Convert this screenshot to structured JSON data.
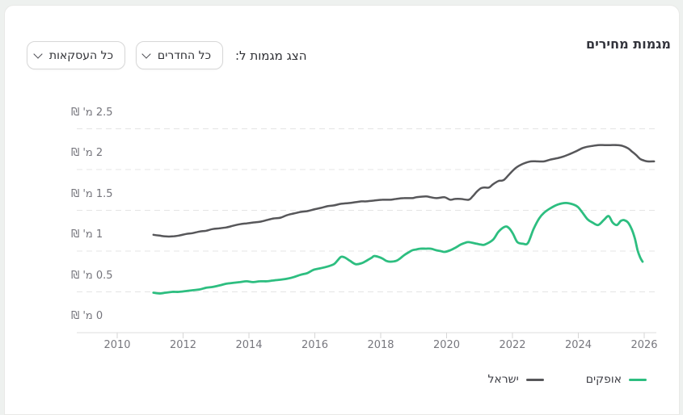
{
  "page": {
    "background": "#eef1ef",
    "card_background": "#ffffff"
  },
  "header": {
    "title": "מגמות מחירים",
    "filters_label": "הצג מגמות ל:",
    "rooms_filter": {
      "value": "כל החדרים"
    },
    "transactions_filter": {
      "value": "כל העסקאות"
    }
  },
  "chart_data": {
    "type": "line",
    "title": "מגמות מחירים",
    "x_axis": {
      "min": 2009.3,
      "max": 2026.55,
      "grid": false,
      "ticks": [
        2010,
        2012,
        2014,
        2016,
        2018,
        2020,
        2022,
        2024,
        2026
      ]
    },
    "y_axis": {
      "min": 0,
      "max": 2.5,
      "unit": "מיליוני ₪",
      "grid": true,
      "grid_style": "dashed",
      "ticks": [
        {
          "value": 0,
          "label": "0 מ' ₪"
        },
        {
          "value": 0.5,
          "label": "0.5 מ' ₪"
        },
        {
          "value": 1,
          "label": "1 מ' ₪"
        },
        {
          "value": 1.5,
          "label": "1.5 מ' ₪"
        },
        {
          "value": 2,
          "label": "2 מ' ₪"
        },
        {
          "value": 2.5,
          "label": "2.5 מ' ₪"
        }
      ]
    },
    "legend_position": "bottom-right",
    "series": [
      {
        "name": "אופקים",
        "color": "#2dbe80",
        "points": [
          [
            2011.1,
            0.49
          ],
          [
            2011.28,
            0.48
          ],
          [
            2011.47,
            0.49
          ],
          [
            2011.67,
            0.5
          ],
          [
            2011.87,
            0.5
          ],
          [
            2012.09,
            0.51
          ],
          [
            2012.28,
            0.52
          ],
          [
            2012.5,
            0.53
          ],
          [
            2012.7,
            0.55
          ],
          [
            2012.9,
            0.56
          ],
          [
            2013.12,
            0.58
          ],
          [
            2013.31,
            0.6
          ],
          [
            2013.51,
            0.61
          ],
          [
            2013.73,
            0.62
          ],
          [
            2013.93,
            0.63
          ],
          [
            2014.12,
            0.62
          ],
          [
            2014.34,
            0.63
          ],
          [
            2014.54,
            0.63
          ],
          [
            2014.74,
            0.64
          ],
          [
            2014.96,
            0.65
          ],
          [
            2015.15,
            0.66
          ],
          [
            2015.35,
            0.68
          ],
          [
            2015.57,
            0.71
          ],
          [
            2015.77,
            0.73
          ],
          [
            2015.96,
            0.77
          ],
          [
            2016.18,
            0.79
          ],
          [
            2016.38,
            0.81
          ],
          [
            2016.58,
            0.84
          ],
          [
            2016.7,
            0.89
          ],
          [
            2016.8,
            0.93
          ],
          [
            2016.92,
            0.92
          ],
          [
            2017.07,
            0.88
          ],
          [
            2017.24,
            0.84
          ],
          [
            2017.41,
            0.85
          ],
          [
            2017.56,
            0.88
          ],
          [
            2017.73,
            0.92
          ],
          [
            2017.8,
            0.94
          ],
          [
            2017.93,
            0.93
          ],
          [
            2018.05,
            0.91
          ],
          [
            2018.17,
            0.88
          ],
          [
            2018.29,
            0.87
          ],
          [
            2018.47,
            0.88
          ],
          [
            2018.59,
            0.91
          ],
          [
            2018.71,
            0.95
          ],
          [
            2018.83,
            0.98
          ],
          [
            2018.96,
            1.01
          ],
          [
            2019.08,
            1.02
          ],
          [
            2019.2,
            1.03
          ],
          [
            2019.37,
            1.03
          ],
          [
            2019.52,
            1.03
          ],
          [
            2019.69,
            1.01
          ],
          [
            2019.82,
            1.0
          ],
          [
            2019.94,
            0.99
          ],
          [
            2020.11,
            1.01
          ],
          [
            2020.26,
            1.04
          ],
          [
            2020.43,
            1.08
          ],
          [
            2020.55,
            1.1
          ],
          [
            2020.67,
            1.11
          ],
          [
            2020.92,
            1.09
          ],
          [
            2021.04,
            1.08
          ],
          [
            2021.16,
            1.08
          ],
          [
            2021.41,
            1.14
          ],
          [
            2021.58,
            1.24
          ],
          [
            2021.78,
            1.3
          ],
          [
            2021.9,
            1.28
          ],
          [
            2022.02,
            1.21
          ],
          [
            2022.15,
            1.11
          ],
          [
            2022.32,
            1.09
          ],
          [
            2022.47,
            1.1
          ],
          [
            2022.64,
            1.27
          ],
          [
            2022.81,
            1.4
          ],
          [
            2022.96,
            1.47
          ],
          [
            2023.13,
            1.52
          ],
          [
            2023.37,
            1.57
          ],
          [
            2023.62,
            1.59
          ],
          [
            2023.86,
            1.57
          ],
          [
            2023.99,
            1.54
          ],
          [
            2024.11,
            1.48
          ],
          [
            2024.28,
            1.39
          ],
          [
            2024.43,
            1.35
          ],
          [
            2024.6,
            1.32
          ],
          [
            2024.77,
            1.38
          ],
          [
            2024.92,
            1.43
          ],
          [
            2025.04,
            1.35
          ],
          [
            2025.17,
            1.32
          ],
          [
            2025.29,
            1.37
          ],
          [
            2025.39,
            1.38
          ],
          [
            2025.51,
            1.35
          ],
          [
            2025.63,
            1.26
          ],
          [
            2025.72,
            1.15
          ],
          [
            2025.8,
            1.01
          ],
          [
            2025.88,
            0.92
          ],
          [
            2025.95,
            0.87
          ]
        ]
      },
      {
        "name": "ישראל",
        "color": "#57575a",
        "points": [
          [
            2011.1,
            1.2
          ],
          [
            2011.28,
            1.19
          ],
          [
            2011.47,
            1.18
          ],
          [
            2011.67,
            1.18
          ],
          [
            2011.87,
            1.19
          ],
          [
            2012.09,
            1.21
          ],
          [
            2012.28,
            1.22
          ],
          [
            2012.5,
            1.24
          ],
          [
            2012.7,
            1.25
          ],
          [
            2012.9,
            1.27
          ],
          [
            2013.12,
            1.28
          ],
          [
            2013.31,
            1.29
          ],
          [
            2013.51,
            1.31
          ],
          [
            2013.73,
            1.33
          ],
          [
            2013.93,
            1.34
          ],
          [
            2014.12,
            1.35
          ],
          [
            2014.34,
            1.36
          ],
          [
            2014.54,
            1.38
          ],
          [
            2014.74,
            1.4
          ],
          [
            2014.96,
            1.41
          ],
          [
            2015.15,
            1.44
          ],
          [
            2015.35,
            1.46
          ],
          [
            2015.57,
            1.48
          ],
          [
            2015.77,
            1.49
          ],
          [
            2015.96,
            1.51
          ],
          [
            2016.18,
            1.53
          ],
          [
            2016.38,
            1.55
          ],
          [
            2016.58,
            1.56
          ],
          [
            2016.8,
            1.58
          ],
          [
            2017.07,
            1.59
          ],
          [
            2017.24,
            1.6
          ],
          [
            2017.41,
            1.61
          ],
          [
            2017.56,
            1.61
          ],
          [
            2017.8,
            1.62
          ],
          [
            2018.05,
            1.63
          ],
          [
            2018.29,
            1.63
          ],
          [
            2018.47,
            1.64
          ],
          [
            2018.71,
            1.65
          ],
          [
            2018.96,
            1.65
          ],
          [
            2019.08,
            1.66
          ],
          [
            2019.37,
            1.67
          ],
          [
            2019.52,
            1.66
          ],
          [
            2019.69,
            1.65
          ],
          [
            2019.94,
            1.66
          ],
          [
            2020.11,
            1.63
          ],
          [
            2020.26,
            1.64
          ],
          [
            2020.43,
            1.64
          ],
          [
            2020.67,
            1.63
          ],
          [
            2020.79,
            1.67
          ],
          [
            2020.92,
            1.73
          ],
          [
            2021.04,
            1.77
          ],
          [
            2021.16,
            1.78
          ],
          [
            2021.29,
            1.78
          ],
          [
            2021.41,
            1.82
          ],
          [
            2021.58,
            1.86
          ],
          [
            2021.73,
            1.87
          ],
          [
            2021.9,
            1.94
          ],
          [
            2022.1,
            2.02
          ],
          [
            2022.32,
            2.07
          ],
          [
            2022.56,
            2.1
          ],
          [
            2022.76,
            2.1
          ],
          [
            2022.96,
            2.1
          ],
          [
            2023.13,
            2.12
          ],
          [
            2023.37,
            2.14
          ],
          [
            2023.55,
            2.16
          ],
          [
            2023.74,
            2.19
          ],
          [
            2023.91,
            2.22
          ],
          [
            2024.11,
            2.26
          ],
          [
            2024.28,
            2.28
          ],
          [
            2024.43,
            2.29
          ],
          [
            2024.6,
            2.3
          ],
          [
            2024.8,
            2.3
          ],
          [
            2024.97,
            2.3
          ],
          [
            2025.17,
            2.3
          ],
          [
            2025.34,
            2.29
          ],
          [
            2025.51,
            2.26
          ],
          [
            2025.63,
            2.22
          ],
          [
            2025.75,
            2.18
          ],
          [
            2025.88,
            2.13
          ],
          [
            2026.0,
            2.11
          ],
          [
            2026.1,
            2.1
          ],
          [
            2026.3,
            2.1
          ]
        ]
      }
    ]
  }
}
